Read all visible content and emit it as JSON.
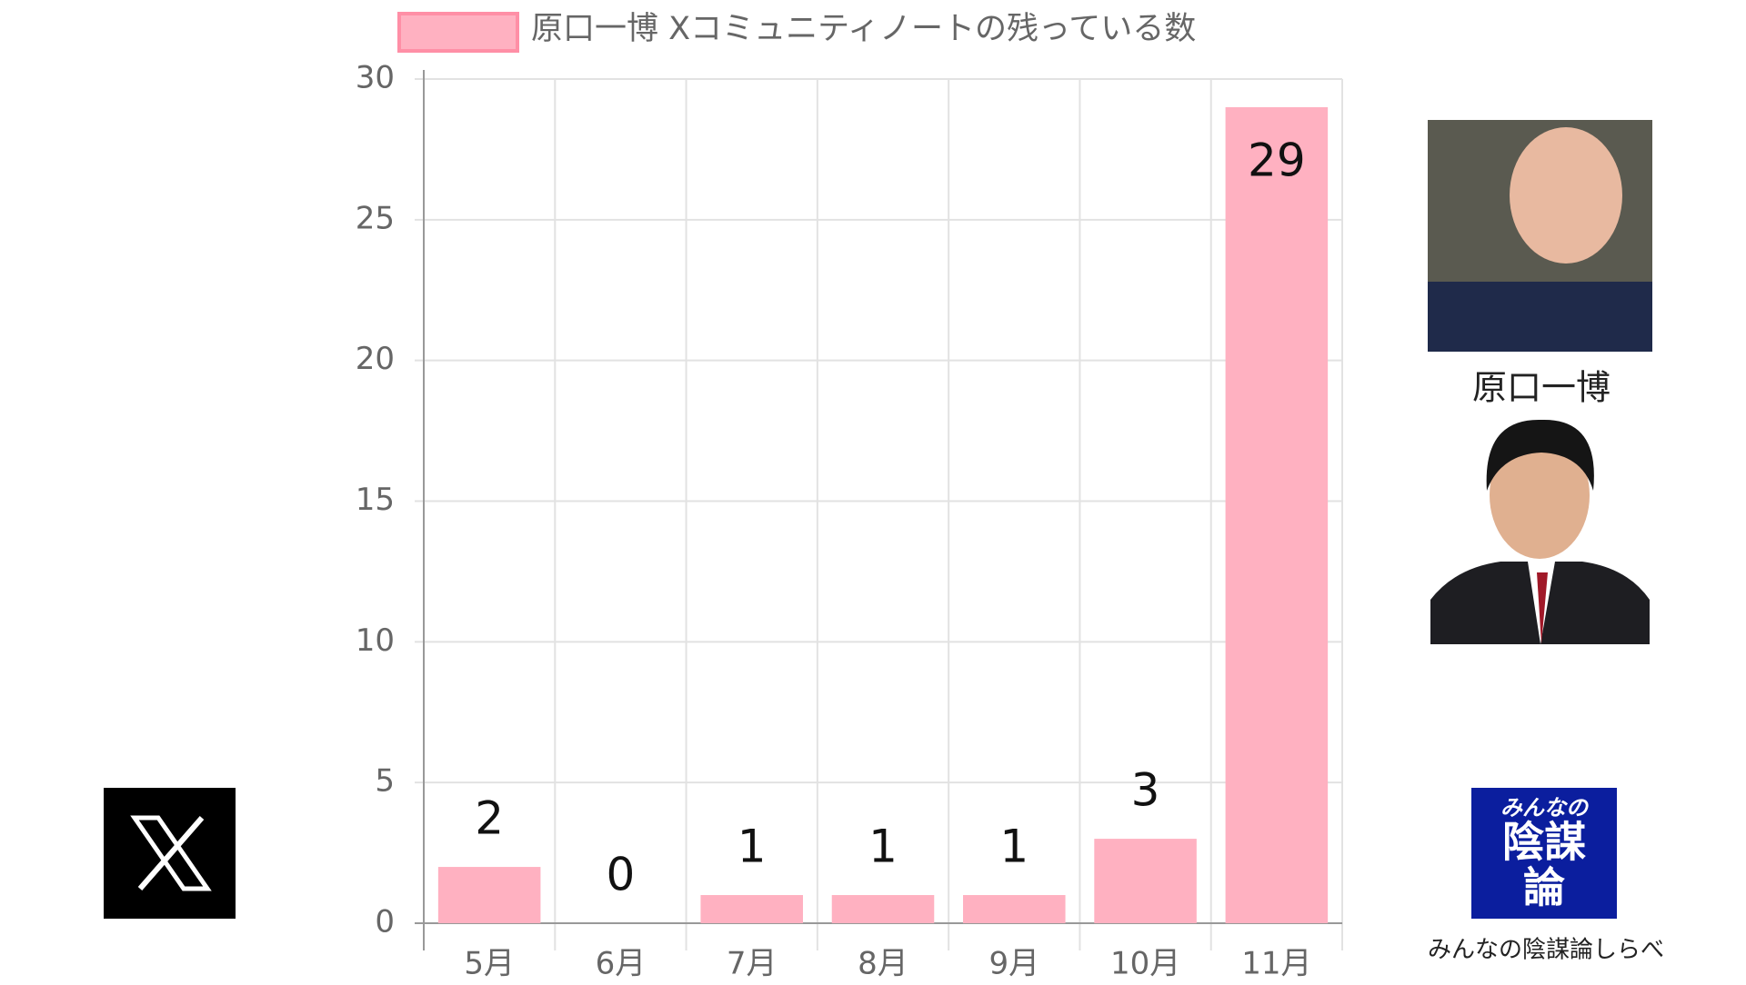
{
  "chart_data": {
    "type": "bar",
    "categories": [
      "5月",
      "6月",
      "7月",
      "8月",
      "9月",
      "10月",
      "11月"
    ],
    "series": [
      {
        "name": "原口一博 Xコミュニティノートの残っている数",
        "color": "#ffb1c1",
        "values": [
          2,
          0,
          1,
          1,
          1,
          3,
          29
        ]
      }
    ],
    "ylim": [
      0,
      30
    ],
    "yticks": [
      0,
      5,
      10,
      15,
      20,
      25,
      30
    ],
    "grid": true
  },
  "photo_caption": "原口一博",
  "logo_lines": [
    "みんなの",
    "陰謀",
    "論"
  ],
  "site_name": "みんなの陰謀論しらべ"
}
